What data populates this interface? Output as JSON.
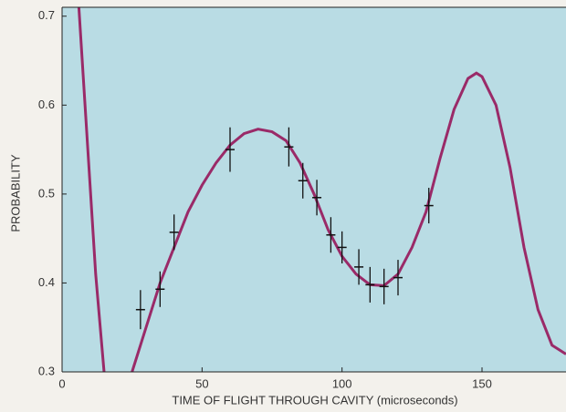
{
  "chart_data": {
    "type": "scatter",
    "xlabel": "TIME OF FLIGHT THROUGH CAVITY (microseconds)",
    "ylabel": "PROBABILITY",
    "xlim": [
      0,
      180
    ],
    "ylim": [
      0.3,
      0.71
    ],
    "xticks": [
      0,
      50,
      100,
      150
    ],
    "yticks": [
      0.3,
      0.4,
      0.5,
      0.6,
      0.7
    ],
    "background": "#b9dce4",
    "series": [
      {
        "type": "line",
        "color": "#9a2a68",
        "x": [
          6,
          8,
          10,
          12,
          15,
          20,
          25,
          30,
          35,
          40,
          45,
          50,
          55,
          60,
          65,
          70,
          75,
          80,
          85,
          90,
          95,
          100,
          105,
          110,
          115,
          120,
          125,
          130,
          135,
          140,
          145,
          148,
          150,
          155,
          160,
          165,
          170,
          175,
          180
        ],
        "values": [
          0.71,
          0.61,
          0.51,
          0.41,
          0.3,
          null,
          0.3,
          0.35,
          0.4,
          0.44,
          0.48,
          0.51,
          0.535,
          0.555,
          0.568,
          0.573,
          0.57,
          0.56,
          0.535,
          0.5,
          0.46,
          0.43,
          0.41,
          0.398,
          0.397,
          0.41,
          0.44,
          0.48,
          0.54,
          0.595,
          0.63,
          0.636,
          0.632,
          0.6,
          0.53,
          0.44,
          0.37,
          0.33,
          0.32
        ]
      },
      {
        "type": "errorbar",
        "color": "#111111",
        "x": [
          28,
          35,
          40,
          60,
          81,
          86,
          91,
          96,
          100,
          106,
          110,
          115,
          120,
          131
        ],
        "values": [
          0.37,
          0.393,
          0.457,
          0.55,
          0.553,
          0.515,
          0.496,
          0.454,
          0.44,
          0.418,
          0.398,
          0.396,
          0.406,
          0.487
        ],
        "errors": [
          0.022,
          0.02,
          0.02,
          0.025,
          0.022,
          0.02,
          0.02,
          0.02,
          0.018,
          0.02,
          0.02,
          0.02,
          0.02,
          0.02
        ]
      }
    ]
  }
}
